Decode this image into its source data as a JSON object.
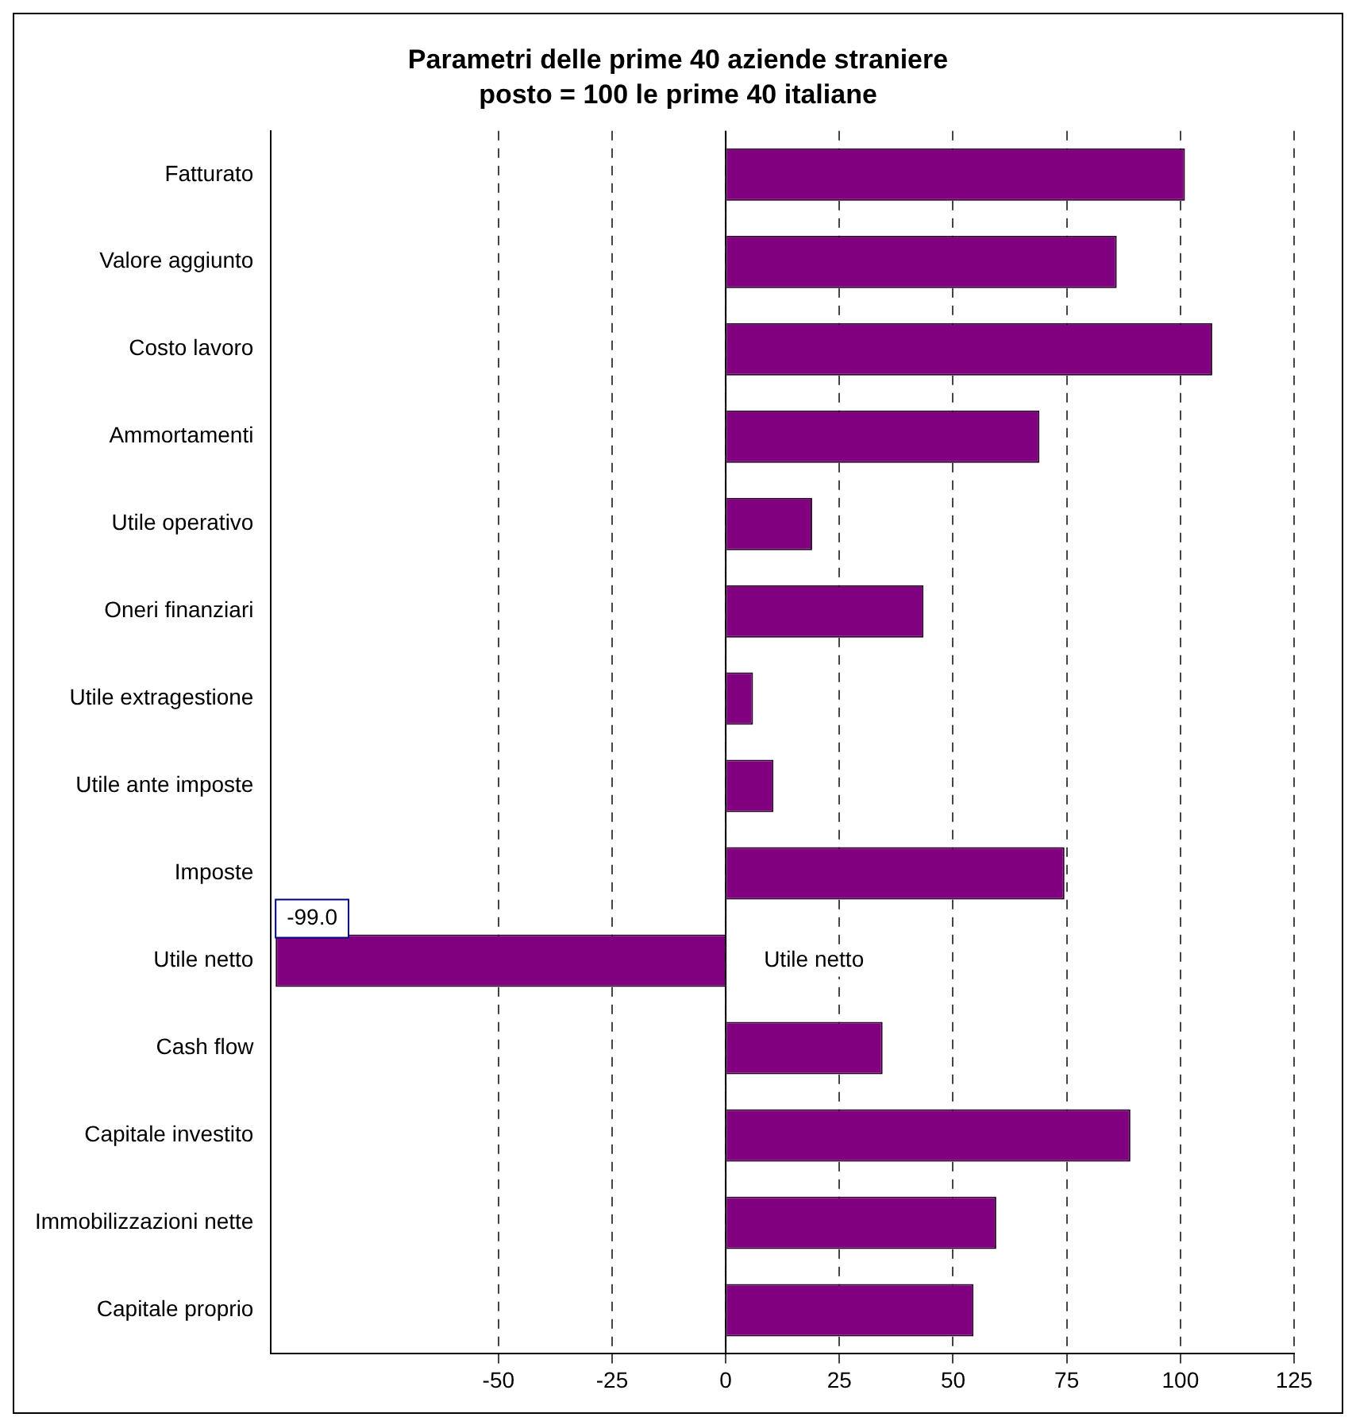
{
  "chart_data": {
    "type": "bar",
    "orientation": "horizontal",
    "title": "Parametri delle prime 40 aziende straniere\nposto = 100 le prime 40 italiane",
    "categories": [
      "Fatturato",
      "Valore aggiunto",
      "Costo lavoro",
      "Ammortamenti",
      "Utile operativo",
      "Oneri finanziari",
      "Utile extragestione",
      "Utile ante imposte",
      "Imposte",
      "Utile netto",
      "Cash flow",
      "Capitale investito",
      "Immobilizzazioni nette",
      "Capitale proprio"
    ],
    "values": [
      101,
      86,
      107,
      69,
      19,
      43.5,
      6,
      10.5,
      74.5,
      -99,
      34.5,
      89,
      59.5,
      54.5
    ],
    "value_labels": [
      null,
      null,
      null,
      null,
      null,
      null,
      null,
      null,
      null,
      "-99.0",
      null,
      null,
      null,
      null
    ],
    "color": "#800080",
    "xlim": [
      -100,
      125
    ],
    "xticks": [
      -50,
      -25,
      0,
      25,
      50,
      75,
      100,
      125
    ],
    "grid": "x",
    "ref_lines": [
      {
        "axis": "x",
        "value": 0,
        "color": "#000000",
        "line_style": "solid"
      }
    ],
    "annotations": [
      "Utile netto"
    ]
  }
}
